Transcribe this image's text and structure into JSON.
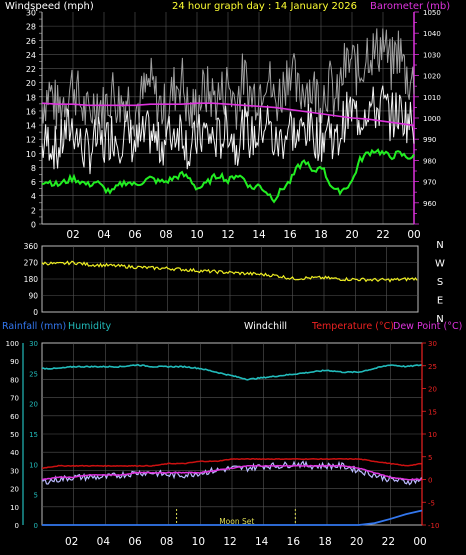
{
  "header": {
    "left": "Windspeed (mph)",
    "center": "24 hour graph day : 14 January 2026",
    "right": "Barometer (mb)"
  },
  "colors": {
    "background": "#000000",
    "grid": "#555555",
    "frame": "#bbbbbb",
    "wind": "#f2f2f2",
    "gust_fill": "#a0a0a0",
    "avg_wind": "#22ee22",
    "barometer": "#dd33dd",
    "wind_dir": "#eeee22",
    "humidity": "#22bbbb",
    "temperature": "#cc1111",
    "dew_point": "#dd33dd",
    "windchill": "#bbbbff",
    "rainfall": "#3377ee",
    "axis_text": "#ffffff",
    "red_axis": "#ee2222"
  },
  "chart_data": [
    {
      "type": "line",
      "name": "wind-barometer",
      "title": "24 hour graph day : 14 January 2026",
      "ylabel_left": "Windspeed (mph)",
      "ylabel_right": "Barometer (mb)",
      "ylim_left": [
        0,
        30
      ],
      "ylim_right": [
        950,
        1050
      ],
      "yticks_left": [
        "0",
        "2",
        "4",
        "6",
        "8",
        "10",
        "12",
        "14",
        "16",
        "18",
        "20",
        "22",
        "24",
        "26",
        "28",
        "30"
      ],
      "yticks_right": [
        "960",
        "970",
        "980",
        "990",
        "1000",
        "1010",
        "1020",
        "1030",
        "1040",
        "1050"
      ],
      "xticks": [
        "02",
        "04",
        "06",
        "08",
        "10",
        "12",
        "14",
        "16",
        "18",
        "20",
        "22",
        "00"
      ],
      "grid": true,
      "series": [
        {
          "name": "gust",
          "x": [
            0,
            0.5,
            1,
            1.5,
            2,
            2.5,
            3,
            3.5,
            4,
            4.5,
            5,
            5.5,
            6,
            6.5,
            7,
            7.5,
            8,
            8.5,
            9,
            9.5,
            10,
            10.5,
            11,
            11.5,
            12,
            12.5,
            13,
            13.5,
            14,
            14.5,
            15,
            15.5,
            16,
            16.5,
            17,
            17.5,
            18,
            18.5,
            19,
            19.5,
            20,
            20.5,
            21,
            21.5,
            22,
            22.5,
            23,
            23.5,
            24
          ],
          "values": [
            17,
            19,
            16,
            18,
            20,
            17,
            15,
            18,
            16,
            19,
            17,
            18,
            16,
            18,
            20,
            17,
            16,
            19,
            21,
            15,
            17,
            19,
            18,
            18,
            20,
            17,
            21,
            18,
            19,
            22,
            17,
            19,
            23,
            18,
            20,
            19,
            18,
            20,
            17,
            22,
            23,
            21,
            25,
            24,
            26,
            22,
            25,
            21,
            20
          ]
        },
        {
          "name": "windspeed",
          "x": [
            0,
            0.5,
            1,
            1.5,
            2,
            2.5,
            3,
            3.5,
            4,
            4.5,
            5,
            5.5,
            6,
            6.5,
            7,
            7.5,
            8,
            8.5,
            9,
            9.5,
            10,
            10.5,
            11,
            11.5,
            12,
            12.5,
            13,
            13.5,
            14,
            14.5,
            15,
            15.5,
            16,
            16.5,
            17,
            17.5,
            18,
            18.5,
            19,
            19.5,
            20,
            20.5,
            21,
            21.5,
            22,
            22.5,
            23,
            23.5,
            24
          ],
          "values": [
            11,
            12,
            10,
            13,
            14,
            11,
            10,
            12,
            11,
            13,
            12,
            13,
            11,
            12,
            13,
            11,
            12,
            13,
            14,
            10,
            12,
            13,
            12,
            12,
            14,
            11,
            14,
            12,
            13,
            15,
            11,
            12,
            14,
            12,
            14,
            13,
            12,
            14,
            11,
            15,
            16,
            15,
            17,
            16,
            17,
            15,
            16,
            15,
            14
          ]
        },
        {
          "name": "average",
          "x": [
            0,
            0.5,
            1,
            1.5,
            2,
            2.5,
            3,
            3.5,
            4,
            4.5,
            5,
            5.5,
            6,
            6.5,
            7,
            7.5,
            8,
            8.5,
            9,
            9.5,
            10,
            10.5,
            11,
            11.5,
            12,
            12.5,
            13,
            13.5,
            14,
            14.5,
            15,
            15.5,
            16,
            16.5,
            17,
            17.5,
            18,
            18.5,
            19,
            19.5,
            20,
            20.5,
            21,
            21.5,
            22,
            22.5,
            23,
            23.5,
            24
          ],
          "values": [
            6,
            6,
            5.5,
            6,
            6.5,
            6,
            5.5,
            6,
            5,
            4.5,
            5.5,
            6,
            5.5,
            6,
            6.5,
            6,
            6,
            6.5,
            7,
            6.5,
            5,
            5.5,
            6.5,
            7,
            6,
            7,
            6.5,
            5,
            5.5,
            4.5,
            3.5,
            5,
            6,
            8,
            9,
            7,
            8.5,
            6,
            4.5,
            5,
            6,
            9,
            10,
            10.5,
            10,
            9.5,
            10,
            9.5,
            9.5
          ]
        },
        {
          "name": "barometer",
          "axis": "right",
          "x": [
            0,
            1,
            2,
            3,
            4,
            5,
            6,
            7,
            8,
            9,
            10,
            11,
            12,
            13,
            14,
            15,
            16,
            17,
            18,
            19,
            20,
            21,
            22,
            23,
            24
          ],
          "values": [
            1007,
            1006.5,
            1006.5,
            1006,
            1006,
            1006,
            1006,
            1006.5,
            1006.5,
            1006.5,
            1007,
            1007,
            1006.5,
            1006,
            1005.5,
            1005,
            1004,
            1003,
            1002,
            1001,
            1000,
            999.5,
            998.5,
            997.5,
            996.5
          ]
        }
      ]
    },
    {
      "type": "line",
      "name": "wind-direction",
      "ylim": [
        0,
        360
      ],
      "yticks": [
        "0",
        "90",
        "180",
        "270",
        "360"
      ],
      "compass": [
        "N",
        "W",
        "S",
        "E",
        "N"
      ],
      "grid": true,
      "series": [
        {
          "name": "direction",
          "x": [
            0,
            1,
            2,
            3,
            4,
            5,
            6,
            7,
            8,
            9,
            10,
            11,
            12,
            13,
            14,
            15,
            16,
            17,
            18,
            19,
            20,
            21,
            22,
            23,
            24
          ],
          "values": [
            268,
            262,
            270,
            258,
            255,
            250,
            245,
            240,
            238,
            232,
            225,
            220,
            215,
            210,
            205,
            198,
            182,
            186,
            186,
            180,
            178,
            176,
            174,
            178,
            182
          ]
        }
      ]
    },
    {
      "type": "line",
      "name": "rain-humidity-temperature",
      "legend_left": "Rainfall (mm)",
      "legend_humidity": "Humidity",
      "legend_windchill": "Windchill",
      "legend_temperature": "Temperature (°C)",
      "legend_dewpoint": "Dew Point (°C)",
      "ylim_humidity": [
        0,
        100
      ],
      "ylim_rain": [
        0,
        30
      ],
      "ylim_temperature": [
        -10,
        30
      ],
      "yticks_humidity": [
        "0",
        "10",
        "20",
        "30",
        "40",
        "50",
        "60",
        "70",
        "80",
        "90",
        "100"
      ],
      "yticks_rain": [
        "0",
        "5",
        "10",
        "15",
        "20",
        "25",
        "30"
      ],
      "yticks_temperature": [
        "-10",
        "-5",
        "0",
        "5",
        "10",
        "15",
        "20",
        "25",
        "30"
      ],
      "xticks": [
        "02",
        "04",
        "06",
        "08",
        "10",
        "12",
        "14",
        "16",
        "18",
        "20",
        "22",
        "00"
      ],
      "annotation": "Moon Set",
      "grid": true,
      "series": [
        {
          "name": "humidity",
          "axis": "humidity",
          "x": [
            0,
            1,
            2,
            3,
            4,
            5,
            6,
            7,
            8,
            9,
            10,
            11,
            12,
            13,
            14,
            15,
            16,
            17,
            18,
            19,
            20,
            21,
            22,
            23,
            24
          ],
          "values": [
            86,
            86,
            87,
            87,
            87,
            87,
            88,
            87,
            87,
            87,
            86,
            84,
            82,
            80,
            81,
            82,
            83,
            84,
            85,
            84,
            84,
            86,
            88,
            87,
            88
          ]
        },
        {
          "name": "temperature",
          "axis": "temperature",
          "x": [
            0,
            1,
            2,
            3,
            4,
            5,
            6,
            7,
            8,
            9,
            10,
            11,
            12,
            13,
            14,
            15,
            16,
            17,
            18,
            19,
            20,
            21,
            22,
            23,
            24
          ],
          "values": [
            2.5,
            3,
            3,
            3,
            3,
            3,
            3,
            3,
            3.5,
            3.5,
            4,
            4,
            4.5,
            4.5,
            4.5,
            4.5,
            4.5,
            4.5,
            4.5,
            4.5,
            4.5,
            4,
            3.5,
            3,
            3.5
          ]
        },
        {
          "name": "dewpoint",
          "axis": "temperature",
          "x": [
            0,
            1,
            2,
            3,
            4,
            5,
            6,
            7,
            8,
            9,
            10,
            11,
            12,
            13,
            14,
            15,
            16,
            17,
            18,
            19,
            20,
            21,
            22,
            23,
            24
          ],
          "values": [
            0,
            0.5,
            0.5,
            1,
            1,
            1,
            1.5,
            1.5,
            1.5,
            1.5,
            1.5,
            2,
            2.5,
            3,
            3,
            3,
            3,
            3,
            3,
            3,
            2.5,
            1.5,
            0.5,
            0,
            0
          ]
        },
        {
          "name": "windchill",
          "axis": "temperature",
          "x": [
            0,
            1,
            2,
            3,
            4,
            5,
            6,
            7,
            8,
            9,
            10,
            11,
            12,
            13,
            14,
            15,
            16,
            17,
            18,
            19,
            20,
            21,
            22,
            23,
            24
          ],
          "values": [
            -0.5,
            0,
            0.5,
            0.5,
            0.5,
            1,
            1.5,
            1.5,
            1,
            1,
            1.5,
            2,
            2.5,
            2.5,
            3,
            3,
            3.5,
            3,
            3,
            3,
            2,
            1,
            0,
            -0.5,
            0
          ]
        },
        {
          "name": "rainfall",
          "axis": "rain",
          "x": [
            0,
            2,
            4,
            6,
            8,
            10,
            12,
            14,
            16,
            18,
            20,
            21,
            22,
            23,
            24
          ],
          "values": [
            0,
            0,
            0,
            0,
            0,
            0,
            0,
            0,
            0,
            0,
            0,
            0.3,
            1.0,
            1.8,
            2.4
          ]
        }
      ],
      "markers_x": [
        8.5,
        16
      ]
    }
  ]
}
